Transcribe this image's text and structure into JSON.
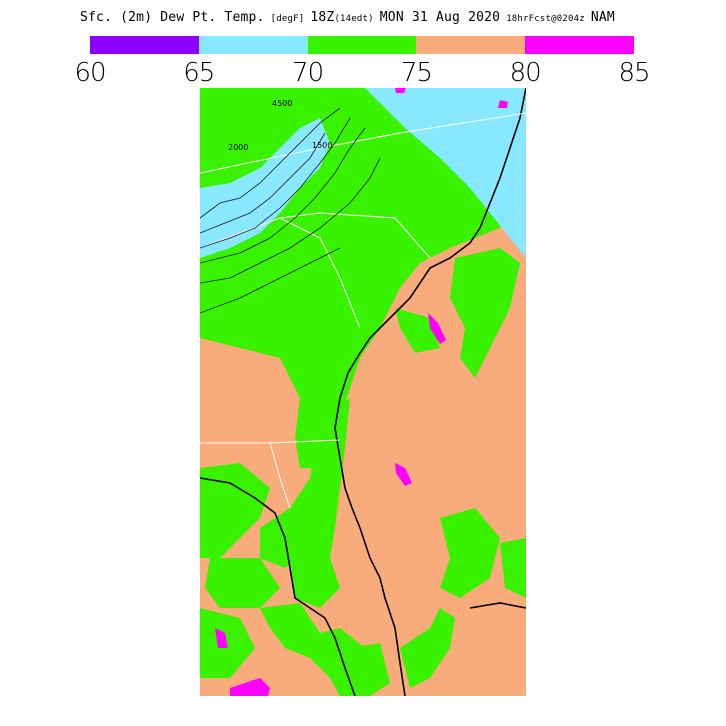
{
  "header": {
    "field": "Sfc. (2m) Dew Pt. Temp.",
    "units": "[degF]",
    "time": "18Z",
    "local": "(14edt)",
    "date": "MON 31 Aug 2020",
    "fcst": "18hrFcst@0204z",
    "model": "NAM"
  },
  "legend": {
    "colors": [
      "#8b00ff",
      "#87e8ff",
      "#39f200",
      "#f9ac7b",
      "#ff00ff"
    ],
    "labels": [
      "60",
      "65",
      "70",
      "75",
      "80",
      "85"
    ]
  },
  "map": {
    "contour_labels": [
      "4500",
      "1500",
      "2000"
    ]
  }
}
